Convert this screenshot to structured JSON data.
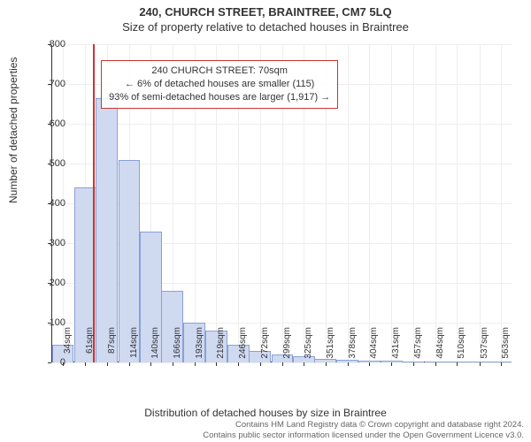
{
  "title": "240, CHURCH STREET, BRAINTREE, CM7 5LQ",
  "subtitle": "Size of property relative to detached houses in Braintree",
  "y_axis_label": "Number of detached properties",
  "x_axis_label": "Distribution of detached houses by size in Braintree",
  "chart": {
    "type": "histogram",
    "xlim": [
      20,
      576
    ],
    "ylim": [
      0,
      800
    ],
    "y_ticks": [
      0,
      100,
      200,
      300,
      400,
      500,
      600,
      700,
      800
    ],
    "x_tick_positions": [
      34,
      61,
      87,
      114,
      140,
      166,
      193,
      219,
      246,
      272,
      299,
      325,
      351,
      378,
      404,
      431,
      457,
      484,
      510,
      537,
      563
    ],
    "x_tick_labels": [
      "34sqm",
      "61sqm",
      "87sqm",
      "114sqm",
      "140sqm",
      "166sqm",
      "193sqm",
      "219sqm",
      "246sqm",
      "272sqm",
      "299sqm",
      "325sqm",
      "351sqm",
      "378sqm",
      "404sqm",
      "431sqm",
      "457sqm",
      "484sqm",
      "510sqm",
      "537sqm",
      "563sqm"
    ],
    "grid_color": "#eeeeee",
    "bar_fill": "#cfd9f0",
    "bar_stroke": "#8aa0d6",
    "bar_width_sqm": 26.5,
    "bars": [
      {
        "x": 34,
        "y": 45
      },
      {
        "x": 61,
        "y": 440
      },
      {
        "x": 87,
        "y": 665
      },
      {
        "x": 114,
        "y": 510
      },
      {
        "x": 140,
        "y": 330
      },
      {
        "x": 166,
        "y": 180
      },
      {
        "x": 193,
        "y": 100
      },
      {
        "x": 219,
        "y": 80
      },
      {
        "x": 246,
        "y": 45
      },
      {
        "x": 272,
        "y": 30
      },
      {
        "x": 299,
        "y": 20
      },
      {
        "x": 325,
        "y": 15
      },
      {
        "x": 351,
        "y": 10
      },
      {
        "x": 378,
        "y": 6
      },
      {
        "x": 404,
        "y": 5
      },
      {
        "x": 431,
        "y": 4
      },
      {
        "x": 457,
        "y": 3
      },
      {
        "x": 484,
        "y": 2
      },
      {
        "x": 510,
        "y": 2
      },
      {
        "x": 537,
        "y": 2
      },
      {
        "x": 563,
        "y": 2
      }
    ],
    "marker": {
      "x": 70,
      "color": "#cc3333"
    },
    "annotation": {
      "lines": [
        "240 CHURCH STREET: 70sqm",
        "← 6% of detached houses are smaller (115)",
        "93% of semi-detached houses are larger (1,917) →"
      ],
      "border_color": "#cc3333",
      "left_sqm": 80,
      "top_y": 760
    }
  },
  "footer_lines": [
    "Contains HM Land Registry data © Crown copyright and database right 2024.",
    "Contains public sector information licensed under the Open Government Licence v3.0."
  ]
}
